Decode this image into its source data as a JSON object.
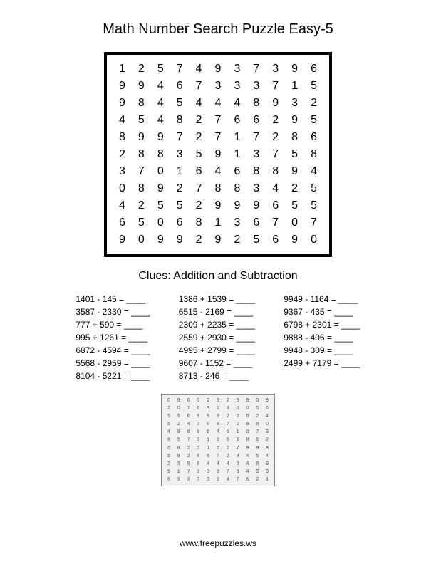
{
  "title": "Math Number Search Puzzle Easy-5",
  "grid": {
    "rows": 11,
    "cols": 11,
    "border_color": "#000000",
    "border_width": 4,
    "cell_fontsize": 16,
    "data": [
      [
        1,
        2,
        5,
        7,
        4,
        9,
        3,
        7,
        3,
        9,
        6
      ],
      [
        9,
        9,
        4,
        6,
        7,
        3,
        3,
        3,
        7,
        1,
        5
      ],
      [
        9,
        8,
        4,
        5,
        4,
        4,
        4,
        8,
        9,
        3,
        2
      ],
      [
        4,
        5,
        4,
        8,
        2,
        7,
        6,
        6,
        2,
        9,
        5
      ],
      [
        8,
        9,
        9,
        7,
        2,
        7,
        1,
        7,
        2,
        8,
        6
      ],
      [
        2,
        8,
        8,
        3,
        5,
        9,
        1,
        3,
        7,
        5,
        8
      ],
      [
        3,
        7,
        0,
        1,
        6,
        4,
        6,
        8,
        8,
        9,
        4
      ],
      [
        0,
        8,
        9,
        2,
        7,
        8,
        8,
        3,
        4,
        2,
        5
      ],
      [
        4,
        2,
        5,
        5,
        2,
        9,
        9,
        9,
        6,
        5,
        5
      ],
      [
        6,
        5,
        0,
        6,
        8,
        1,
        3,
        6,
        7,
        0,
        7
      ],
      [
        9,
        0,
        9,
        9,
        2,
        9,
        2,
        5,
        6,
        9,
        0
      ]
    ]
  },
  "clues_title": "Clues: Addition and Subtraction",
  "clues": {
    "col1": [
      "1401 - 145 = ____",
      "3587 - 2330 = ____",
      "777 + 590 = ____",
      "995 + 1261 = ____",
      "6872 - 4594 = ____",
      "5568 - 2959 = ____",
      "8104 - 5221 = ____"
    ],
    "col2": [
      "1386 + 1539 = ____",
      "6515 - 2169 = ____",
      "2309 + 2235 = ____",
      "2559 + 2930 = ____",
      "4995 + 2799 = ____",
      "9607 - 1152 = ____",
      "8713 - 246 = ____"
    ],
    "col3": [
      "9949 - 1164 = ____",
      "9367 - 435 = ____",
      "6798 + 2301 = ____",
      "9888 - 406 = ____",
      "9948 - 309 = ____",
      "2499 + 7179 = ____"
    ]
  },
  "answer_key_grid": [
    [
      0,
      9,
      6,
      5,
      2,
      9,
      2,
      9,
      9,
      0,
      9
    ],
    [
      7,
      0,
      7,
      6,
      3,
      1,
      8,
      6,
      0,
      5,
      6
    ],
    [
      5,
      5,
      6,
      9,
      9,
      9,
      2,
      5,
      5,
      2,
      4
    ],
    [
      5,
      2,
      4,
      3,
      8,
      8,
      7,
      2,
      9,
      8,
      0
    ],
    [
      4,
      9,
      8,
      8,
      6,
      4,
      6,
      1,
      0,
      7,
      3
    ],
    [
      8,
      5,
      7,
      3,
      1,
      9,
      5,
      3,
      8,
      8,
      2
    ],
    [
      6,
      8,
      2,
      7,
      1,
      7,
      2,
      7,
      9,
      9,
      8
    ],
    [
      5,
      9,
      2,
      6,
      6,
      7,
      2,
      8,
      4,
      5,
      4
    ],
    [
      2,
      3,
      9,
      8,
      4,
      4,
      4,
      5,
      4,
      8,
      9
    ],
    [
      5,
      1,
      7,
      3,
      3,
      3,
      7,
      6,
      4,
      9,
      9
    ],
    [
      6,
      9,
      3,
      7,
      3,
      9,
      4,
      7,
      5,
      2,
      1
    ]
  ],
  "footer": "www.freepuzzles.ws",
  "colors": {
    "background": "#ffffff",
    "text": "#000000",
    "answer_key_bg": "#f0f0f0",
    "answer_key_text": "#555555"
  }
}
